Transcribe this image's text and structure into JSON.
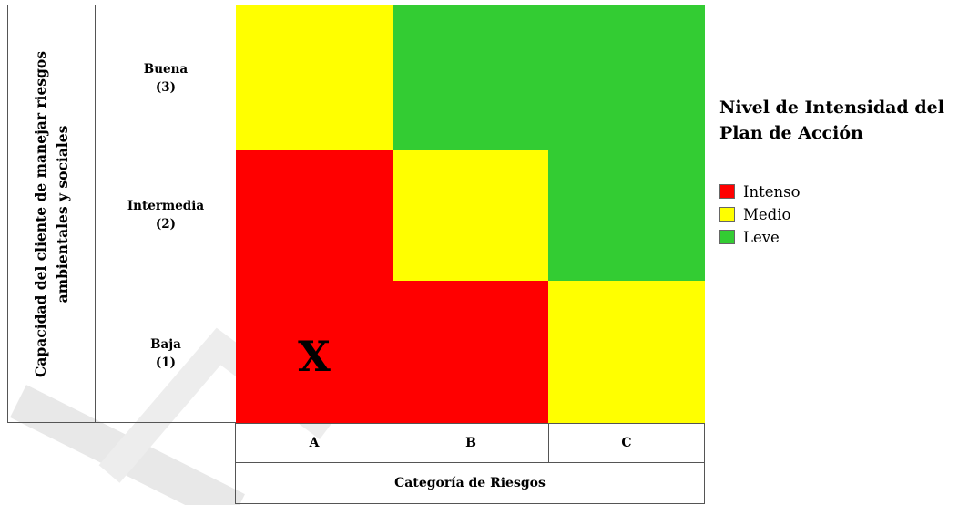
{
  "y_axis": {
    "title_line1": "Capacidad del cliente de manejar riesgos",
    "title_line2": "ambientales y sociales",
    "levels": [
      {
        "name": "Buena",
        "value": "(3)"
      },
      {
        "name": "Intermedia",
        "value": "(2)"
      },
      {
        "name": "Baja",
        "value": "(1)"
      }
    ]
  },
  "x_axis": {
    "title": "Categoría de Riesgos",
    "categories": [
      "A",
      "B",
      "C"
    ]
  },
  "matrix": {
    "marker": "X",
    "marker_cell": {
      "category": "A",
      "level": "Baja"
    },
    "cells": [
      {
        "category": "A",
        "level": "Buena",
        "intensity": "Medio"
      },
      {
        "category": "A",
        "level": "Intermedia",
        "intensity": "Intenso"
      },
      {
        "category": "A",
        "level": "Baja",
        "intensity": "Intenso"
      },
      {
        "category": "B",
        "level": "Buena",
        "intensity": "Leve"
      },
      {
        "category": "B",
        "level": "Intermedia",
        "intensity": "Medio"
      },
      {
        "category": "B",
        "level": "Baja",
        "intensity": "Intenso"
      },
      {
        "category": "C",
        "level": "Buena",
        "intensity": "Leve"
      },
      {
        "category": "C",
        "level": "Intermedia",
        "intensity": "Leve"
      },
      {
        "category": "C",
        "level": "Baja",
        "intensity": "Medio"
      }
    ]
  },
  "legend": {
    "title_line1": "Nivel de Intensidad del",
    "title_line2": "Plan de Acción",
    "items": [
      {
        "label": "Intenso",
        "color": "#ff0000"
      },
      {
        "label": "Medio",
        "color": "#ffff00"
      },
      {
        "label": "Leve",
        "color": "#33cc33"
      }
    ]
  }
}
